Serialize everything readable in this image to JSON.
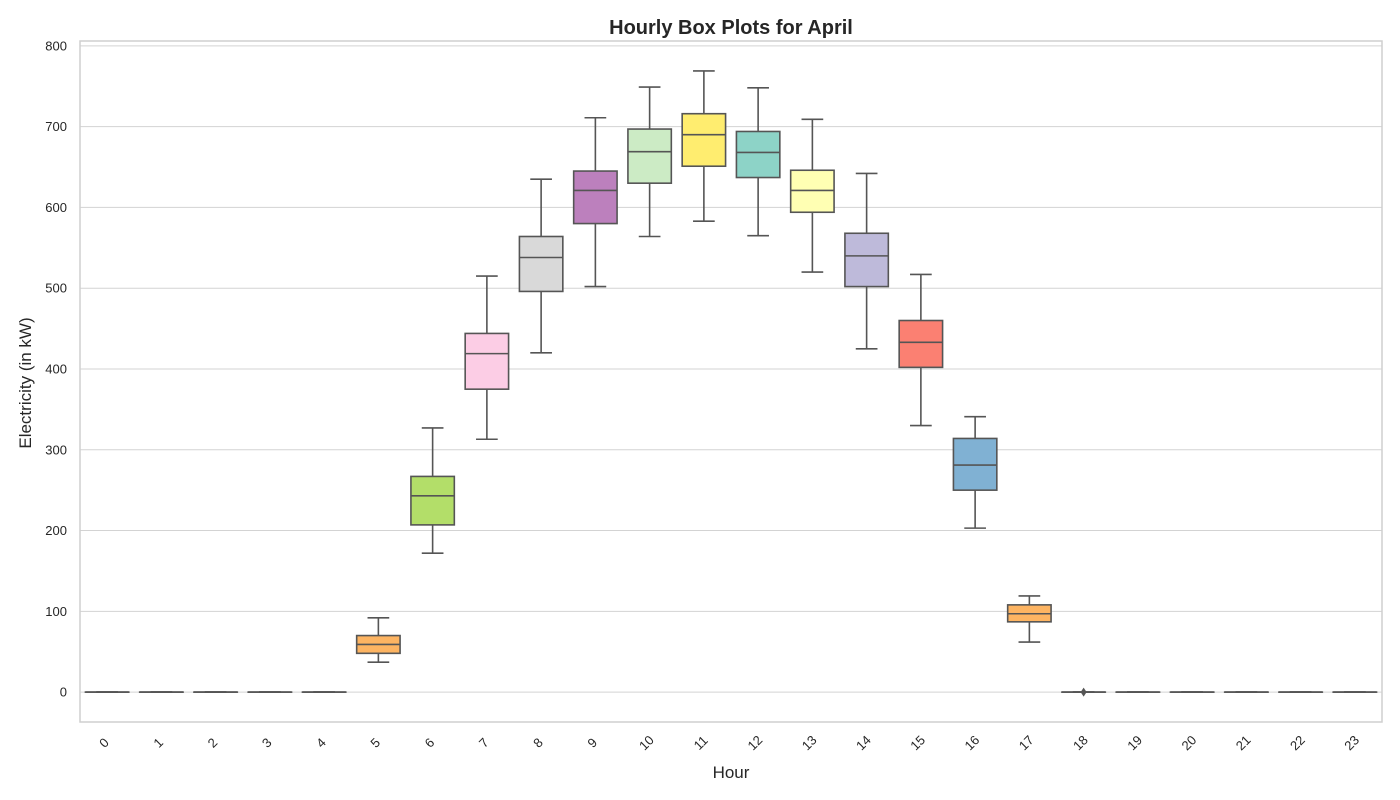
{
  "chart_data": {
    "type": "box",
    "title": "Hourly Box Plots for April",
    "xlabel": "Hour",
    "ylabel": "Electricity (in kW)",
    "ylim": [
      -37,
      806
    ],
    "yticks": [
      0,
      100,
      200,
      300,
      400,
      500,
      600,
      700,
      800
    ],
    "grid": "horizontal",
    "categories": [
      "0",
      "1",
      "2",
      "3",
      "4",
      "5",
      "6",
      "7",
      "8",
      "9",
      "10",
      "11",
      "12",
      "13",
      "14",
      "15",
      "16",
      "17",
      "18",
      "19",
      "20",
      "21",
      "22",
      "23"
    ],
    "boxes": [
      {
        "min": 0,
        "q1": 0,
        "median": 0,
        "q3": 0,
        "max": 0,
        "color": "#8dd3c7"
      },
      {
        "min": 0,
        "q1": 0,
        "median": 0,
        "q3": 0,
        "max": 0,
        "color": "#ffffb3"
      },
      {
        "min": 0,
        "q1": 0,
        "median": 0,
        "q3": 0,
        "max": 0,
        "color": "#bebada"
      },
      {
        "min": 0,
        "q1": 0,
        "median": 0,
        "q3": 0,
        "max": 0,
        "color": "#fb8072"
      },
      {
        "min": 0,
        "q1": 0,
        "median": 0,
        "q3": 0,
        "max": 0,
        "color": "#80b1d3"
      },
      {
        "min": 37,
        "q1": 48,
        "median": 59,
        "q3": 70,
        "max": 92,
        "color": "#fdb462"
      },
      {
        "min": 172,
        "q1": 207,
        "median": 243,
        "q3": 267,
        "max": 327,
        "color": "#b3de69"
      },
      {
        "min": 313,
        "q1": 375,
        "median": 419,
        "q3": 444,
        "max": 515,
        "color": "#fccde5"
      },
      {
        "min": 420,
        "q1": 496,
        "median": 538,
        "q3": 564,
        "max": 635,
        "color": "#d9d9d9"
      },
      {
        "min": 502,
        "q1": 580,
        "median": 621,
        "q3": 645,
        "max": 711,
        "color": "#bc80bd"
      },
      {
        "min": 564,
        "q1": 630,
        "median": 669,
        "q3": 697,
        "max": 749,
        "color": "#ccebc5"
      },
      {
        "min": 583,
        "q1": 651,
        "median": 690,
        "q3": 716,
        "max": 769,
        "color": "#ffed6f"
      },
      {
        "min": 565,
        "q1": 637,
        "median": 668,
        "q3": 694,
        "max": 748,
        "color": "#8dd3c7"
      },
      {
        "min": 520,
        "q1": 594,
        "median": 621,
        "q3": 646,
        "max": 709,
        "color": "#ffffb3"
      },
      {
        "min": 425,
        "q1": 502,
        "median": 540,
        "q3": 568,
        "max": 642,
        "color": "#bebada"
      },
      {
        "min": 330,
        "q1": 402,
        "median": 433,
        "q3": 460,
        "max": 517,
        "color": "#fb8072"
      },
      {
        "min": 203,
        "q1": 250,
        "median": 281,
        "q3": 314,
        "max": 341,
        "color": "#80b1d3"
      },
      {
        "min": 62,
        "q1": 87,
        "median": 97,
        "q3": 108,
        "max": 119,
        "color": "#fdb462"
      },
      {
        "min": 0,
        "q1": 0,
        "median": 0,
        "q3": 0,
        "max": 0,
        "color": "#b3de69",
        "outliers": [
          0
        ]
      },
      {
        "min": 0,
        "q1": 0,
        "median": 0,
        "q3": 0,
        "max": 0,
        "color": "#fccde5"
      },
      {
        "min": 0,
        "q1": 0,
        "median": 0,
        "q3": 0,
        "max": 0,
        "color": "#d9d9d9"
      },
      {
        "min": 0,
        "q1": 0,
        "median": 0,
        "q3": 0,
        "max": 0,
        "color": "#bc80bd"
      },
      {
        "min": 0,
        "q1": 0,
        "median": 0,
        "q3": 0,
        "max": 0,
        "color": "#ccebc5"
      },
      {
        "min": 0,
        "q1": 0,
        "median": 0,
        "q3": 0,
        "max": 0,
        "color": "#ffed6f"
      }
    ]
  }
}
